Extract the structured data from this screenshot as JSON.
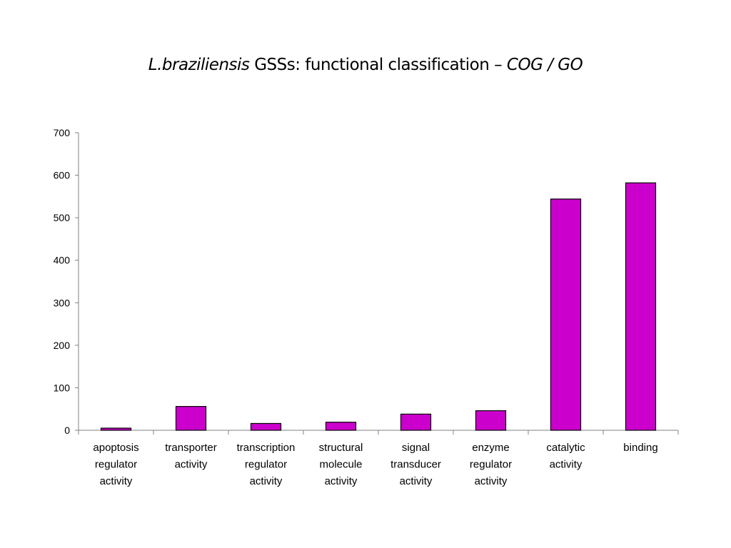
{
  "chart_data": {
    "type": "bar",
    "title": {
      "italic_prefix": "L.braziliensis",
      "main": " GSSs: functional classification – ",
      "italic_suffix": "COG / GO"
    },
    "xlabel": "",
    "ylabel": "",
    "ylim": [
      0,
      700
    ],
    "yticks": [
      0,
      100,
      200,
      300,
      400,
      500,
      600,
      700
    ],
    "grid": false,
    "legend": "none",
    "bar_color": "#cc00cc",
    "categories": [
      [
        "apoptosis",
        "regulator",
        "activity"
      ],
      [
        "transporter",
        "activity"
      ],
      [
        "transcription",
        "regulator",
        "activity"
      ],
      [
        "structural",
        "molecule",
        "activity"
      ],
      [
        "signal",
        "transducer",
        "activity"
      ],
      [
        "enzyme",
        "regulator",
        "activity"
      ],
      [
        "catalytic",
        "activity"
      ],
      [
        "binding"
      ]
    ],
    "values": [
      5,
      56,
      16,
      19,
      38,
      46,
      544,
      582
    ]
  }
}
